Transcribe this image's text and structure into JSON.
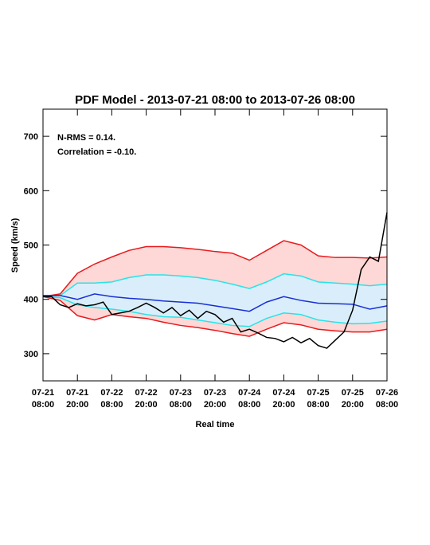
{
  "chart_data": {
    "type": "line",
    "title": "PDF Model - 2013-07-21 08:00 to 2013-07-26 08:00",
    "annotations": [
      "N-RMS = 0.14.",
      "Correlation = -0.10."
    ],
    "ylabel": "Speed (km/s)",
    "xlabel": "Real time",
    "xlim": [
      "07-21 08:00",
      "07-26 08:00"
    ],
    "xticks": [
      "07-21 08:00",
      "07-21 20:00",
      "07-22 08:00",
      "07-22 20:00",
      "07-23 08:00",
      "07-23 20:00",
      "07-24 08:00",
      "07-24 20:00",
      "07-25 08:00",
      "07-25 20:00",
      "07-26 08:00"
    ],
    "ylim": [
      250,
      750
    ],
    "yticks": [
      300,
      400,
      500,
      600,
      700
    ],
    "x": [
      "07-21 08:00",
      "07-21 14:00",
      "07-21 20:00",
      "07-22 02:00",
      "07-22 08:00",
      "07-22 14:00",
      "07-22 20:00",
      "07-23 02:00",
      "07-23 08:00",
      "07-23 14:00",
      "07-23 20:00",
      "07-24 02:00",
      "07-24 08:00",
      "07-24 14:00",
      "07-24 20:00",
      "07-25 02:00",
      "07-25 08:00",
      "07-25 14:00",
      "07-25 20:00",
      "07-26 02:00",
      "07-26 08:00"
    ],
    "bands": [
      {
        "between": [
          0,
          4
        ],
        "color": "#fdd8d6"
      },
      {
        "between": [
          1,
          3
        ],
        "color": "#d9eefa"
      }
    ],
    "series": [
      {
        "color": "#e8191c",
        "values": [
          405,
          410,
          448,
          465,
          478,
          490,
          497,
          497,
          495,
          492,
          488,
          485,
          472,
          490,
          508,
          500,
          480,
          477,
          477,
          476,
          478
        ]
      },
      {
        "color": "#29e3e8",
        "values": [
          405,
          407,
          430,
          430,
          432,
          440,
          445,
          445,
          443,
          440,
          435,
          428,
          420,
          432,
          447,
          443,
          432,
          430,
          428,
          425,
          428
        ]
      },
      {
        "color": "#1a2ed6",
        "values": [
          407,
          407,
          400,
          410,
          405,
          402,
          400,
          397,
          395,
          393,
          388,
          383,
          378,
          395,
          405,
          398,
          393,
          392,
          391,
          382,
          388
        ]
      },
      {
        "color": "#29e3e8",
        "values": [
          405,
          403,
          390,
          385,
          382,
          378,
          372,
          368,
          367,
          362,
          357,
          352,
          350,
          365,
          375,
          372,
          362,
          358,
          355,
          356,
          360
        ]
      },
      {
        "color": "#e8191c",
        "values": [
          405,
          398,
          370,
          362,
          372,
          368,
          365,
          358,
          352,
          348,
          343,
          337,
          332,
          345,
          357,
          353,
          345,
          342,
          340,
          340,
          345
        ]
      },
      {
        "color": "#000000",
        "x": [
          "07-21 08:00",
          "07-21 11:00",
          "07-21 14:00",
          "07-21 17:00",
          "07-21 20:00",
          "07-21 23:00",
          "07-22 02:00",
          "07-22 05:00",
          "07-22 08:00",
          "07-22 11:00",
          "07-22 14:00",
          "07-22 17:00",
          "07-22 20:00",
          "07-22 23:00",
          "07-23 02:00",
          "07-23 05:00",
          "07-23 08:00",
          "07-23 11:00",
          "07-23 14:00",
          "07-23 17:00",
          "07-23 20:00",
          "07-23 23:00",
          "07-24 02:00",
          "07-24 05:00",
          "07-24 08:00",
          "07-24 11:00",
          "07-24 14:00",
          "07-24 17:00",
          "07-24 20:00",
          "07-24 23:00",
          "07-25 02:00",
          "07-25 05:00",
          "07-25 08:00",
          "07-25 11:00",
          "07-25 14:00",
          "07-25 17:00",
          "07-25 20:00",
          "07-25 23:00",
          "07-26 02:00",
          "07-26 05:00",
          "07-26 08:00"
        ],
        "values": [
          405,
          405,
          390,
          385,
          392,
          388,
          390,
          395,
          372,
          375,
          378,
          385,
          393,
          385,
          375,
          385,
          370,
          380,
          365,
          378,
          372,
          358,
          365,
          340,
          345,
          338,
          330,
          328,
          322,
          330,
          320,
          328,
          315,
          310,
          325,
          340,
          380,
          455,
          478,
          470,
          560
        ]
      }
    ]
  }
}
